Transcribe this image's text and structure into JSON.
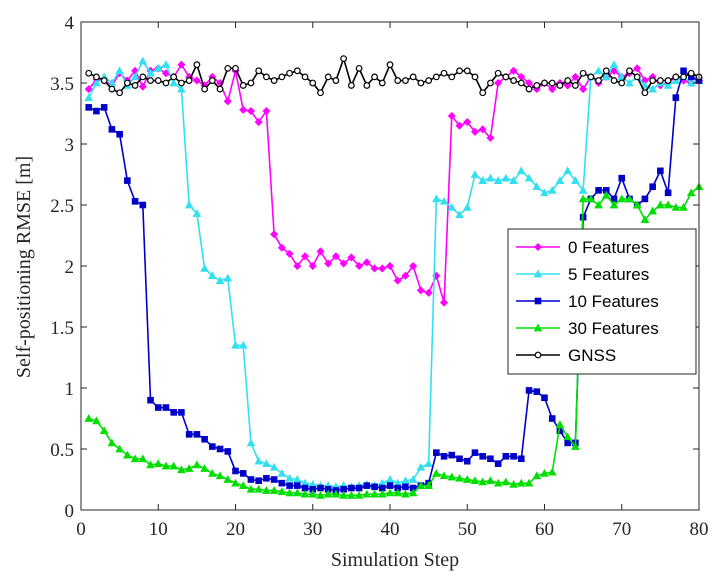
{
  "chart_data": {
    "type": "line",
    "xlabel": "Simulation Step",
    "ylabel": "Self-positioning RMSE [m]",
    "xlim": [
      0,
      80
    ],
    "ylim": [
      0,
      4
    ],
    "xticks": [
      0,
      10,
      20,
      30,
      40,
      50,
      60,
      70,
      80
    ],
    "yticks": [
      0,
      0.5,
      1,
      1.5,
      2,
      2.5,
      3,
      3.5,
      4
    ],
    "grid": false,
    "legend_position": "right",
    "series": [
      {
        "name": "0 Features",
        "color": "#ff00ff",
        "marker": "diamond",
        "x": [
          1,
          2,
          3,
          4,
          5,
          6,
          7,
          8,
          9,
          10,
          11,
          12,
          13,
          14,
          15,
          16,
          17,
          18,
          19,
          20,
          21,
          22,
          23,
          24,
          25,
          26,
          27,
          28,
          29,
          30,
          31,
          32,
          33,
          34,
          35,
          36,
          37,
          38,
          39,
          40,
          41,
          42,
          43,
          44,
          45,
          46,
          47,
          48,
          49,
          50,
          51,
          52,
          53,
          54,
          55,
          56,
          57,
          58,
          59,
          60,
          61,
          62,
          63,
          64,
          65,
          66,
          67,
          68,
          69,
          70,
          71,
          72,
          73,
          74,
          75,
          76,
          77,
          78,
          79,
          80
        ],
        "y": [
          3.45,
          3.53,
          3.52,
          3.48,
          3.58,
          3.52,
          3.6,
          3.47,
          3.6,
          3.62,
          3.58,
          3.55,
          3.65,
          3.55,
          3.52,
          3.48,
          3.55,
          3.5,
          3.35,
          3.6,
          3.28,
          3.27,
          3.18,
          3.27,
          2.26,
          2.15,
          2.1,
          2.0,
          2.08,
          2.0,
          2.12,
          2.02,
          2.08,
          2.02,
          2.07,
          2.0,
          2.03,
          1.98,
          1.98,
          2.0,
          1.88,
          1.92,
          2.0,
          1.8,
          1.78,
          1.92,
          1.7,
          3.23,
          3.15,
          3.18,
          3.1,
          3.12,
          3.05,
          3.5,
          3.55,
          3.6,
          3.55,
          3.5,
          3.45,
          3.5,
          3.45,
          3.5,
          3.48,
          3.55,
          3.45,
          3.55,
          3.5,
          3.55,
          3.6,
          3.55,
          3.58,
          3.62,
          3.52,
          3.55,
          3.48,
          3.5,
          3.55,
          3.52,
          3.5,
          3.52
        ]
      },
      {
        "name": "5 Features",
        "color": "#33e0f0",
        "marker": "triangle",
        "x": [
          1,
          2,
          3,
          4,
          5,
          6,
          7,
          8,
          9,
          10,
          11,
          12,
          13,
          14,
          15,
          16,
          17,
          18,
          19,
          20,
          21,
          22,
          23,
          24,
          25,
          26,
          27,
          28,
          29,
          30,
          31,
          32,
          33,
          34,
          35,
          36,
          37,
          38,
          39,
          40,
          41,
          42,
          43,
          44,
          45,
          46,
          47,
          48,
          49,
          50,
          51,
          52,
          53,
          54,
          55,
          56,
          57,
          58,
          59,
          60,
          61,
          62,
          63,
          64,
          65,
          66,
          67,
          68,
          69,
          70,
          71,
          72,
          73,
          74,
          75,
          76,
          77,
          78,
          79,
          80
        ],
        "y": [
          3.38,
          3.5,
          3.55,
          3.5,
          3.6,
          3.48,
          3.55,
          3.68,
          3.58,
          3.62,
          3.65,
          3.5,
          3.45,
          2.5,
          2.43,
          1.98,
          1.92,
          1.88,
          1.9,
          1.35,
          1.35,
          0.55,
          0.4,
          0.38,
          0.35,
          0.3,
          0.26,
          0.25,
          0.22,
          0.21,
          0.2,
          0.2,
          0.19,
          0.2,
          0.19,
          0.2,
          0.21,
          0.2,
          0.22,
          0.25,
          0.22,
          0.24,
          0.25,
          0.35,
          0.38,
          2.55,
          2.53,
          2.48,
          2.42,
          2.48,
          2.75,
          2.7,
          2.72,
          2.7,
          2.72,
          2.7,
          2.78,
          2.72,
          2.65,
          2.6,
          2.62,
          2.7,
          2.78,
          2.7,
          2.62,
          3.55,
          3.6,
          3.55,
          3.65,
          3.55,
          3.5,
          3.55,
          3.48,
          3.45,
          3.5,
          3.48,
          3.52,
          3.55,
          3.5,
          3.52
        ]
      },
      {
        "name": "10 Features",
        "color": "#0000c8",
        "marker": "square",
        "x": [
          1,
          2,
          3,
          4,
          5,
          6,
          7,
          8,
          9,
          10,
          11,
          12,
          13,
          14,
          15,
          16,
          17,
          18,
          19,
          20,
          21,
          22,
          23,
          24,
          25,
          26,
          27,
          28,
          29,
          30,
          31,
          32,
          33,
          34,
          35,
          36,
          37,
          38,
          39,
          40,
          41,
          42,
          43,
          44,
          45,
          46,
          47,
          48,
          49,
          50,
          51,
          52,
          53,
          54,
          55,
          56,
          57,
          58,
          59,
          60,
          61,
          62,
          63,
          64,
          65,
          66,
          67,
          68,
          69,
          70,
          71,
          72,
          73,
          74,
          75,
          76,
          77,
          78,
          79,
          80
        ],
        "y": [
          3.3,
          3.27,
          3.3,
          3.12,
          3.08,
          2.7,
          2.53,
          2.5,
          0.9,
          0.84,
          0.84,
          0.8,
          0.8,
          0.62,
          0.62,
          0.58,
          0.52,
          0.5,
          0.48,
          0.32,
          0.3,
          0.25,
          0.24,
          0.26,
          0.25,
          0.22,
          0.2,
          0.2,
          0.18,
          0.17,
          0.18,
          0.17,
          0.16,
          0.17,
          0.18,
          0.18,
          0.2,
          0.19,
          0.18,
          0.2,
          0.18,
          0.19,
          0.18,
          0.2,
          0.22,
          0.47,
          0.44,
          0.45,
          0.42,
          0.4,
          0.47,
          0.44,
          0.42,
          0.38,
          0.44,
          0.44,
          0.42,
          0.98,
          0.97,
          0.92,
          0.75,
          0.65,
          0.55,
          0.55,
          2.4,
          2.55,
          2.62,
          2.62,
          2.55,
          2.72,
          2.55,
          2.5,
          2.55,
          2.65,
          2.78,
          2.6,
          3.38,
          3.6,
          3.55,
          3.52
        ]
      },
      {
        "name": "30 Features",
        "color": "#00e000",
        "marker": "triangle",
        "x": [
          1,
          2,
          3,
          4,
          5,
          6,
          7,
          8,
          9,
          10,
          11,
          12,
          13,
          14,
          15,
          16,
          17,
          18,
          19,
          20,
          21,
          22,
          23,
          24,
          25,
          26,
          27,
          28,
          29,
          30,
          31,
          32,
          33,
          34,
          35,
          36,
          37,
          38,
          39,
          40,
          41,
          42,
          43,
          44,
          45,
          46,
          47,
          48,
          49,
          50,
          51,
          52,
          53,
          54,
          55,
          56,
          57,
          58,
          59,
          60,
          61,
          62,
          63,
          64,
          65,
          66,
          67,
          68,
          69,
          70,
          71,
          72,
          73,
          74,
          75,
          76,
          77,
          78,
          79,
          80
        ],
        "y": [
          0.75,
          0.73,
          0.65,
          0.55,
          0.5,
          0.45,
          0.42,
          0.42,
          0.37,
          0.38,
          0.36,
          0.36,
          0.33,
          0.34,
          0.37,
          0.34,
          0.3,
          0.28,
          0.25,
          0.22,
          0.2,
          0.17,
          0.17,
          0.16,
          0.16,
          0.15,
          0.14,
          0.14,
          0.13,
          0.13,
          0.12,
          0.13,
          0.13,
          0.12,
          0.12,
          0.12,
          0.13,
          0.13,
          0.13,
          0.14,
          0.14,
          0.13,
          0.14,
          0.2,
          0.2,
          0.3,
          0.28,
          0.27,
          0.26,
          0.25,
          0.24,
          0.23,
          0.24,
          0.22,
          0.23,
          0.21,
          0.22,
          0.22,
          0.28,
          0.3,
          0.31,
          0.7,
          0.6,
          0.52,
          2.55,
          2.55,
          2.5,
          2.58,
          2.5,
          2.55,
          2.55,
          2.5,
          2.38,
          2.45,
          2.5,
          2.5,
          2.48,
          2.48,
          2.6,
          2.65
        ]
      },
      {
        "name": "GNSS",
        "color": "#000000",
        "marker": "circle",
        "x": [
          1,
          2,
          3,
          4,
          5,
          6,
          7,
          8,
          9,
          10,
          11,
          12,
          13,
          14,
          15,
          16,
          17,
          18,
          19,
          20,
          21,
          22,
          23,
          24,
          25,
          26,
          27,
          28,
          29,
          30,
          31,
          32,
          33,
          34,
          35,
          36,
          37,
          38,
          39,
          40,
          41,
          42,
          43,
          44,
          45,
          46,
          47,
          48,
          49,
          50,
          51,
          52,
          53,
          54,
          55,
          56,
          57,
          58,
          59,
          60,
          61,
          62,
          63,
          64,
          65,
          66,
          67,
          68,
          69,
          70,
          71,
          72,
          73,
          74,
          75,
          76,
          77,
          78,
          79,
          80
        ],
        "y": [
          3.58,
          3.55,
          3.52,
          3.45,
          3.42,
          3.5,
          3.48,
          3.55,
          3.52,
          3.52,
          3.5,
          3.55,
          3.5,
          3.52,
          3.65,
          3.45,
          3.52,
          3.45,
          3.62,
          3.62,
          3.48,
          3.5,
          3.6,
          3.55,
          3.52,
          3.55,
          3.58,
          3.6,
          3.55,
          3.5,
          3.42,
          3.55,
          3.52,
          3.7,
          3.48,
          3.62,
          3.48,
          3.55,
          3.5,
          3.65,
          3.52,
          3.52,
          3.55,
          3.5,
          3.52,
          3.55,
          3.58,
          3.55,
          3.6,
          3.6,
          3.55,
          3.42,
          3.5,
          3.58,
          3.55,
          3.52,
          3.5,
          3.45,
          3.48,
          3.5,
          3.5,
          3.48,
          3.52,
          3.48,
          3.58,
          3.55,
          3.52,
          3.6,
          3.52,
          3.5,
          3.6,
          3.55,
          3.42,
          3.52,
          3.52,
          3.52,
          3.55,
          3.55,
          3.58,
          3.55
        ]
      }
    ]
  }
}
